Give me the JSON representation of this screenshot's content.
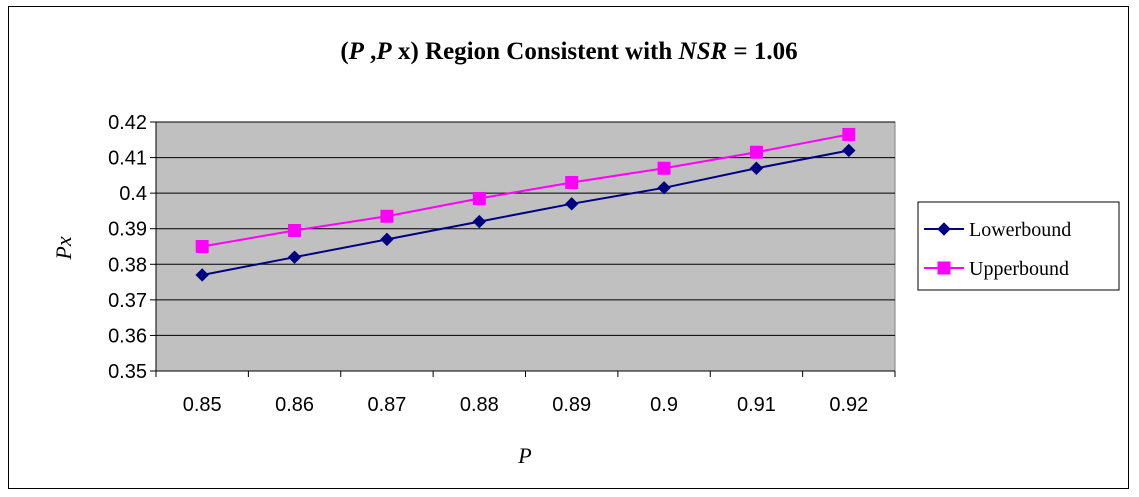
{
  "chart_data": {
    "type": "line",
    "title": {
      "open": "(",
      "p1": "P",
      "comma": " ,",
      "p2": "P",
      "x": " x",
      "mid": ") Region Consistent with ",
      "nsr": "NSR",
      "value": " = 1.06"
    },
    "xlabel": "P",
    "ylabel": "Px",
    "categories": [
      "0.85",
      "0.86",
      "0.87",
      "0.88",
      "0.89",
      "0.9",
      "0.91",
      "0.92"
    ],
    "ylim": [
      0.35,
      0.42
    ],
    "yticks": [
      "0.35",
      "0.36",
      "0.37",
      "0.38",
      "0.39",
      "0.4",
      "0.41",
      "0.42"
    ],
    "grid": true,
    "legend_position": "right",
    "plot_background": "#c0c0c0",
    "series": [
      {
        "name": "Lowerbound",
        "color": "#000080",
        "marker": "diamond",
        "values": [
          0.377,
          0.382,
          0.387,
          0.392,
          0.397,
          0.4015,
          0.407,
          0.412
        ]
      },
      {
        "name": "Upperbound",
        "color": "#ff00ff",
        "marker": "square",
        "values": [
          0.385,
          0.3895,
          0.3935,
          0.3985,
          0.403,
          0.407,
          0.4115,
          0.4165
        ]
      }
    ]
  }
}
